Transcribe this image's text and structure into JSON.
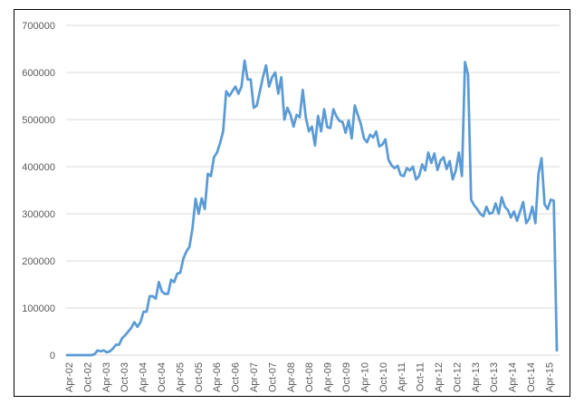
{
  "chart_data": {
    "type": "line",
    "title": "",
    "xlabel": "",
    "ylabel": "",
    "ylim": [
      0,
      700000
    ],
    "yticks": [
      0,
      100000,
      200000,
      300000,
      400000,
      500000,
      600000,
      700000
    ],
    "ytick_labels": [
      "0",
      "100000",
      "200000",
      "300000",
      "400000",
      "500000",
      "600000",
      "700000"
    ],
    "xtick_labels": [
      "Apr-02",
      "Oct-02",
      "Apr-03",
      "Oct-03",
      "Apr-04",
      "Oct-04",
      "Apr-05",
      "Oct-05",
      "Apr-06",
      "Oct-06",
      "Apr-07",
      "Oct-07",
      "Apr-08",
      "Oct-08",
      "Apr-09",
      "Oct-09",
      "Apr-10",
      "Oct-10",
      "Apr-11",
      "Oct-11",
      "Apr-12",
      "Oct-12",
      "Apr-13",
      "Oct-13",
      "Apr-14",
      "Oct-14",
      "Apr-15"
    ],
    "grid": "horizontal",
    "legend": "none",
    "line_color": "#5b9bd5",
    "series": [
      {
        "values": [
          0,
          0,
          0,
          0,
          0,
          0,
          0,
          0,
          0,
          2000,
          10000,
          8000,
          10000,
          6000,
          8000,
          14000,
          22000,
          22000,
          36000,
          42000,
          50000,
          58000,
          70000,
          60000,
          70000,
          92000,
          92000,
          125000,
          125000,
          120000,
          155000,
          135000,
          130000,
          130000,
          160000,
          155000,
          173000,
          175000,
          205000,
          220000,
          230000,
          270000,
          332000,
          300000,
          333000,
          310000,
          385000,
          380000,
          420000,
          430000,
          450000,
          475000,
          560000,
          550000,
          560000,
          570000,
          555000,
          570000,
          625000,
          585000,
          585000,
          525000,
          530000,
          560000,
          590000,
          615000,
          570000,
          590000,
          600000,
          555000,
          590000,
          500000,
          525000,
          510000,
          485000,
          510000,
          505000,
          563000,
          505000,
          475000,
          485000,
          445000,
          508000,
          475000,
          522000,
          484000,
          482000,
          522000,
          507000,
          497000,
          495000,
          472000,
          498000,
          460000,
          530000,
          510000,
          490000,
          460000,
          452000,
          468000,
          462000,
          475000,
          443000,
          447000,
          458000,
          415000,
          403000,
          397000,
          402000,
          382000,
          380000,
          397000,
          392000,
          400000,
          373000,
          380000,
          405000,
          392000,
          430000,
          408000,
          428000,
          393000,
          413000,
          420000,
          395000,
          412000,
          373000,
          392000,
          430000,
          380000,
          622000,
          595000,
          330000,
          318000,
          310000,
          300000,
          295000,
          315000,
          300000,
          302000,
          322000,
          300000,
          335000,
          315000,
          308000,
          292000,
          305000,
          285000,
          305000,
          325000,
          280000,
          290000,
          315000,
          280000,
          385000,
          418000,
          320000,
          310000,
          330000,
          328000,
          10000
        ]
      }
    ]
  }
}
